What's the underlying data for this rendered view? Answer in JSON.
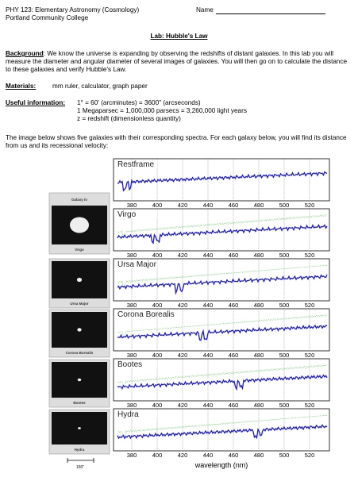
{
  "header": {
    "course": "PHY 123: Elementary Astronomy (Cosmology)",
    "school": "Portland Community College",
    "name_label": "Name"
  },
  "title": "Lab: Hubble's Law",
  "background": {
    "label": "Background",
    "text": ":  We know the universe is expanding by observing the redshifts of distant galaxies.  In this lab you will measure the diameter and angular diameter of several images of galaxies.  You will then go on to calculate the distance to these galaxies and verify Hubble's Law."
  },
  "materials": {
    "label": "Materials:",
    "text": "mm ruler, calculator, graph paper"
  },
  "useful_information": {
    "label": "Useful information:",
    "lines": [
      "1° = 60' (arcminutes) = 3600\" (arcseconds)",
      "1 Megaparsec = 1,000,000 parsecs = 3,260,000 light years",
      "z = redshift (dimensionless quantity)"
    ]
  },
  "intro": "The image below shows five galaxies with their corresponding spectra.  For each galaxy below, you will find its distance from us and its recessional velocity:",
  "figure": {
    "panels": [
      "Restframe",
      "Virgo",
      "Ursa Major",
      "Corona Borealis",
      "Bootes",
      "Hydra"
    ],
    "ticks": [
      380,
      400,
      420,
      440,
      460,
      480,
      500,
      520
    ],
    "x_label": "wavelength (nm)",
    "thumbnail_header": "Galaxy in",
    "thumbnail_labels": [
      "Virgo",
      "Ursa Major",
      "Corona Borealis",
      "Bootes",
      "Hydra"
    ],
    "scale_label": "150\""
  }
}
